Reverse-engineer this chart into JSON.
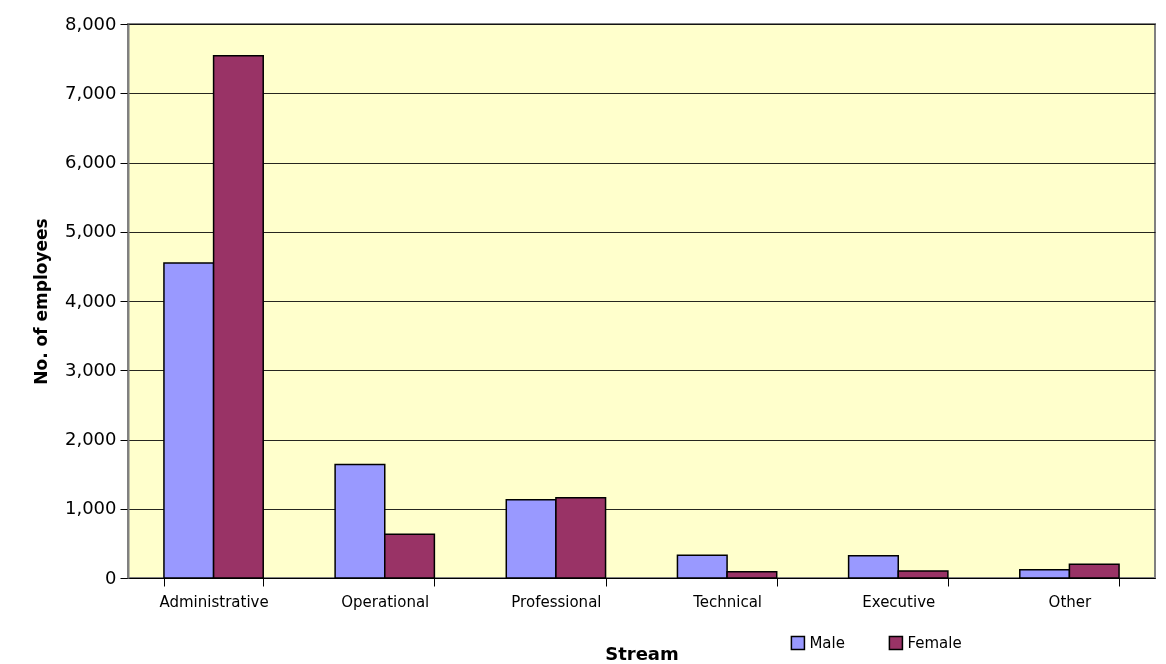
{
  "chart_data": {
    "type": "bar",
    "xlabel": "Stream",
    "ylabel": "No. of employees",
    "categories": [
      "Administrative",
      "Operational",
      "Professional",
      "Technical",
      "Executive",
      "Other"
    ],
    "series": [
      {
        "name": "Male",
        "color": "#9999ff",
        "values": [
          4550,
          1640,
          1130,
          330,
          320,
          120
        ]
      },
      {
        "name": "Female",
        "color": "#993366",
        "values": [
          7540,
          630,
          1160,
          90,
          100,
          200
        ]
      }
    ],
    "ylim": [
      0,
      8000
    ],
    "yticks": [
      0,
      {
        "value": 1000,
        "label": "1,000"
      },
      {
        "value": 2000,
        "label": "2,000"
      },
      {
        "value": 3000,
        "label": "3,000"
      },
      {
        "value": 4000,
        "label": "4,000"
      },
      {
        "value": 5000,
        "label": "5,000"
      },
      {
        "value": 6000,
        "label": "6,000"
      },
      {
        "value": 7000,
        "label": "7,000"
      },
      {
        "value": 8000,
        "label": "8,000"
      }
    ],
    "grid": "y",
    "legend": "bottom right"
  }
}
